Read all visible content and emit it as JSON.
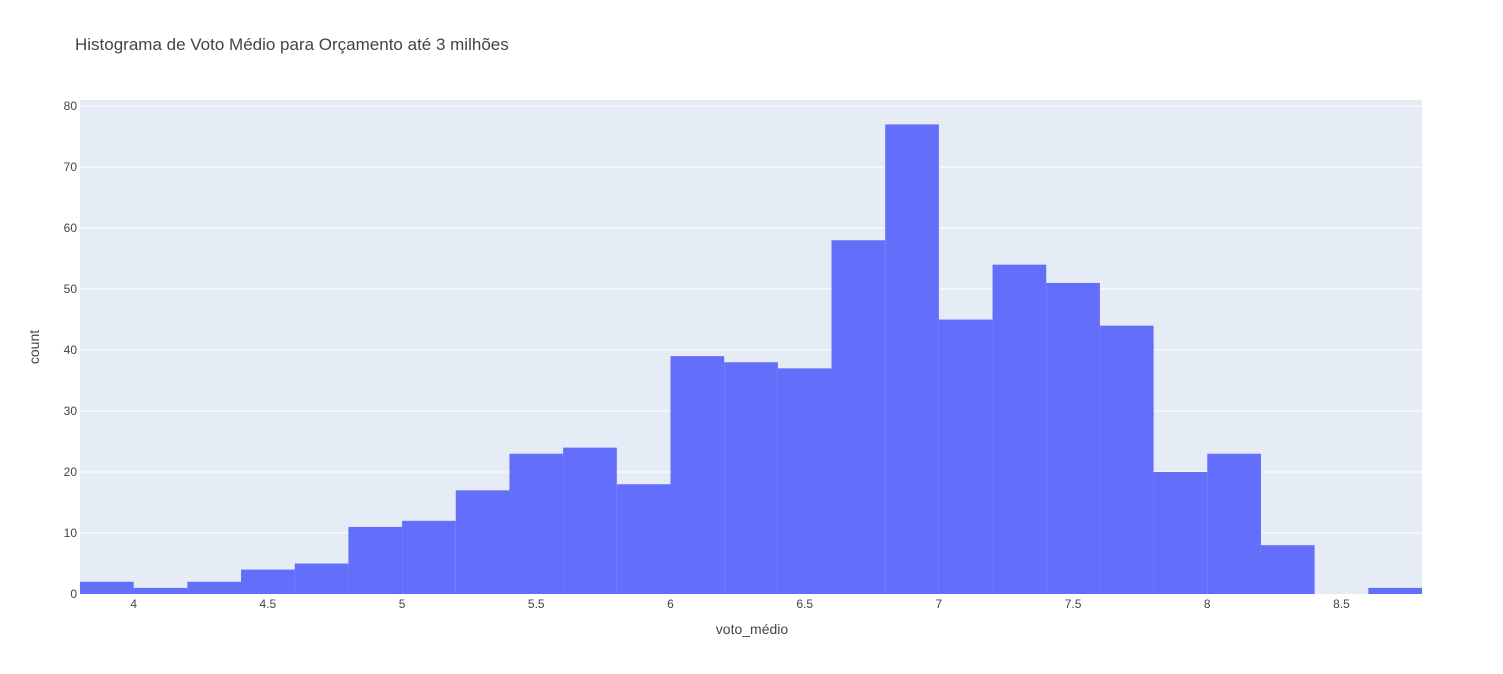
{
  "chart_data": {
    "type": "bar",
    "title": "Histograma de Voto Médio para Orçamento até 3 milhões",
    "xlabel": "voto_médio",
    "ylabel": "count",
    "bin_start": 3.8,
    "bin_size": 0.2,
    "counts": [
      2,
      1,
      2,
      4,
      5,
      11,
      12,
      17,
      23,
      24,
      18,
      39,
      38,
      37,
      58,
      77,
      45,
      54,
      51,
      44,
      20,
      23,
      8,
      0,
      1
    ],
    "xlim": [
      3.8,
      8.8
    ],
    "ylim": [
      0,
      81
    ],
    "x_ticks": [
      4,
      4.5,
      5,
      5.5,
      6,
      6.5,
      7,
      7.5,
      8,
      8.5
    ],
    "x_tick_labels": [
      "4",
      "4.5",
      "5",
      "5.5",
      "6",
      "6.5",
      "7",
      "7.5",
      "8",
      "8.5"
    ],
    "y_ticks": [
      0,
      10,
      20,
      30,
      40,
      50,
      60,
      70,
      80
    ],
    "y_tick_labels": [
      "0",
      "10",
      "20",
      "30",
      "40",
      "50",
      "60",
      "70",
      "80"
    ],
    "grid": true,
    "legend": "none",
    "bar_color": "#636efa",
    "plot_background": "#e5ecf6",
    "grid_color": "#ffffff"
  }
}
